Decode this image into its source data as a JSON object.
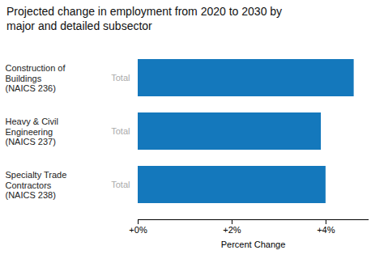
{
  "chart_data": {
    "type": "bar",
    "orientation": "horizontal",
    "title": "Projected change in employment from 2020 to 2030 by\nmajor and detailed subsector",
    "categories": [
      "Construction of\nBuildings\n(NAICS 236)",
      "Heavy & Civil\nEngineering\n(NAICS 237)",
      "Specialty Trade\nContractors\n(NAICS 238)"
    ],
    "annotations": [
      "Total",
      "Total",
      "Total"
    ],
    "values": [
      4.6,
      3.9,
      4.0
    ],
    "color": "#1478BC",
    "xlabel": "Percent Change",
    "xlim": [
      0,
      4.9
    ],
    "xticks": [
      {
        "value": 0,
        "label": "+0%"
      },
      {
        "value": 2,
        "label": "+2%"
      },
      {
        "value": 4,
        "label": "+4%"
      }
    ],
    "grid": false
  }
}
